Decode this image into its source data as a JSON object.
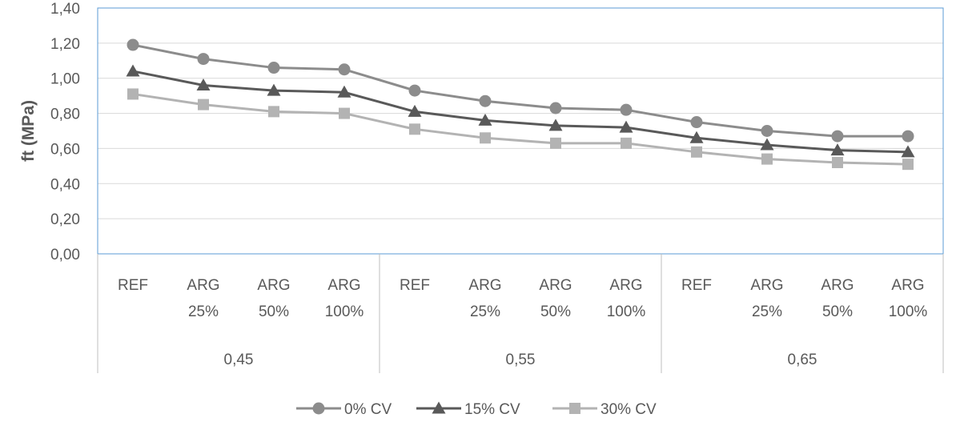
{
  "chart_data": {
    "type": "line",
    "title": "",
    "xlabel": "",
    "ylabel": "ft (MPa)",
    "ylim": [
      0,
      1.4
    ],
    "yticks": [
      "0,00",
      "0,20",
      "0,40",
      "0,60",
      "0,80",
      "1,00",
      "1,20",
      "1,40"
    ],
    "grid": true,
    "legend_position": "bottom",
    "groups": [
      {
        "label": "0,45",
        "categories": [
          [
            "REF"
          ],
          [
            "ARG",
            "25%"
          ],
          [
            "ARG",
            "50%"
          ],
          [
            "ARG",
            "100%"
          ]
        ]
      },
      {
        "label": "0,55",
        "categories": [
          [
            "REF"
          ],
          [
            "ARG",
            "25%"
          ],
          [
            "ARG",
            "50%"
          ],
          [
            "ARG",
            "100%"
          ]
        ]
      },
      {
        "label": "0,65",
        "categories": [
          [
            "REF"
          ],
          [
            "ARG",
            "25%"
          ],
          [
            "ARG",
            "50%"
          ],
          [
            "ARG",
            "100%"
          ]
        ]
      }
    ],
    "series": [
      {
        "name": "0% CV",
        "marker": "circle",
        "color": "#8c8c8c",
        "values": [
          1.19,
          1.11,
          1.06,
          1.05,
          0.93,
          0.87,
          0.83,
          0.82,
          0.75,
          0.7,
          0.67,
          0.67
        ]
      },
      {
        "name": "15% CV",
        "marker": "triangle",
        "color": "#595959",
        "values": [
          1.04,
          0.96,
          0.93,
          0.92,
          0.81,
          0.76,
          0.73,
          0.72,
          0.66,
          0.62,
          0.59,
          0.58
        ]
      },
      {
        "name": "30% CV",
        "marker": "square",
        "color": "#b3b3b3",
        "values": [
          0.91,
          0.85,
          0.81,
          0.8,
          0.71,
          0.66,
          0.63,
          0.63,
          0.58,
          0.54,
          0.52,
          0.51
        ]
      }
    ],
    "colors": {
      "plot_border": "#5b9bd5",
      "grid": "#d9d9d9",
      "axis": "#bfbfbf"
    }
  }
}
